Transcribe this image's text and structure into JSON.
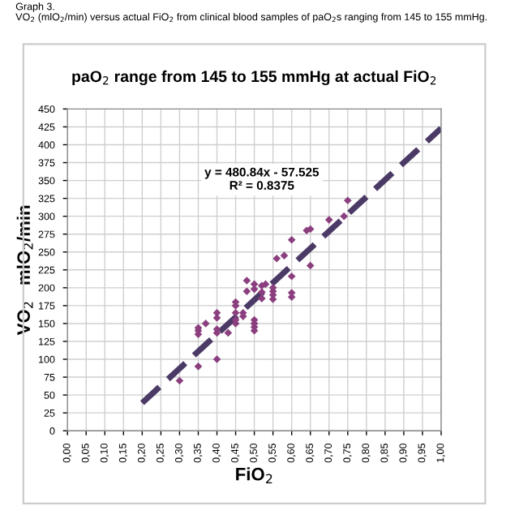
{
  "chart_data": {
    "type": "scatter",
    "title": "paO$_{2}$ range from 145 to 155 mmHg at actual FiO$_{2}$",
    "xlabel": "FiO$_{2}$",
    "ylabel": "VO$_{2}$   mlO$_{2}$/min",
    "annotations": [
      "Graph 3.",
      "VO$_{2}$ (mlO$_{2}$/min) versus actual FiO$_{2}$ from clinical blood samples of paO$_{2}$s ranging from 145 to 155 mmHg.",
      "y = 480.84x - 57.525\nR² = 0.8375"
    ],
    "series": [
      {
        "color": "#8b3f7f",
        "marker": "diamond",
        "x": [
          0.3,
          0.35,
          0.35,
          0.35,
          0.35,
          0.37,
          0.4,
          0.4,
          0.4,
          0.4,
          0.4,
          0.43,
          0.45,
          0.45,
          0.45,
          0.45,
          0.45,
          0.47,
          0.47,
          0.48,
          0.48,
          0.5,
          0.5,
          0.5,
          0.5,
          0.5,
          0.5,
          0.52,
          0.52,
          0.52,
          0.53,
          0.55,
          0.55,
          0.55,
          0.55,
          0.56,
          0.58,
          0.6,
          0.6,
          0.6,
          0.6,
          0.64,
          0.65,
          0.65,
          0.7,
          0.74,
          0.75
        ],
        "values": [
          70,
          90,
          135,
          140,
          144,
          150,
          100,
          137,
          142,
          158,
          165,
          137,
          150,
          155,
          165,
          175,
          180,
          160,
          165,
          195,
          210,
          140,
          145,
          150,
          155,
          198,
          205,
          185,
          194,
          203,
          205,
          184,
          190,
          195,
          200,
          241,
          245,
          187,
          193,
          216,
          267,
          280,
          282,
          231,
          295,
          300,
          322
        ]
      },
      {
        "type": "line",
        "color": "#4b3a66",
        "line_style": "dashed",
        "x": [
          0.2,
          1.0
        ],
        "values": [
          39,
          423
        ]
      }
    ],
    "xlim": [
      0,
      1
    ],
    "ylim": [
      0,
      450
    ],
    "xticks": [
      {
        "value": 0,
        "label": "0,00"
      },
      {
        "value": 0.05,
        "label": "0,05"
      },
      {
        "value": 0.1,
        "label": "0,10"
      },
      {
        "value": 0.15,
        "label": "0,15"
      },
      {
        "value": 0.2,
        "label": "0,20"
      },
      {
        "value": 0.25,
        "label": "0,25"
      },
      {
        "value": 0.3,
        "label": "0,30"
      },
      {
        "value": 0.35,
        "label": "0,35"
      },
      {
        "value": 0.4,
        "label": "0,40"
      },
      {
        "value": 0.45,
        "label": "0,45"
      },
      {
        "value": 0.5,
        "label": "0,50"
      },
      {
        "value": 0.55,
        "label": "0,55"
      },
      {
        "value": 0.6,
        "label": "0,60"
      },
      {
        "value": 0.65,
        "label": "0,65"
      },
      {
        "value": 0.7,
        "label": "0,70"
      },
      {
        "value": 0.75,
        "label": "0,75"
      },
      {
        "value": 0.8,
        "label": "0,80"
      },
      {
        "value": 0.85,
        "label": "0,85"
      },
      {
        "value": 0.9,
        "label": "0,90"
      },
      {
        "value": 0.95,
        "label": "0,95"
      },
      {
        "value": 1.0,
        "label": "1,00"
      }
    ],
    "yticks": [
      0,
      25,
      50,
      75,
      100,
      125,
      150,
      175,
      200,
      225,
      250,
      275,
      300,
      325,
      350,
      375,
      400,
      425,
      450
    ],
    "grid": true
  }
}
